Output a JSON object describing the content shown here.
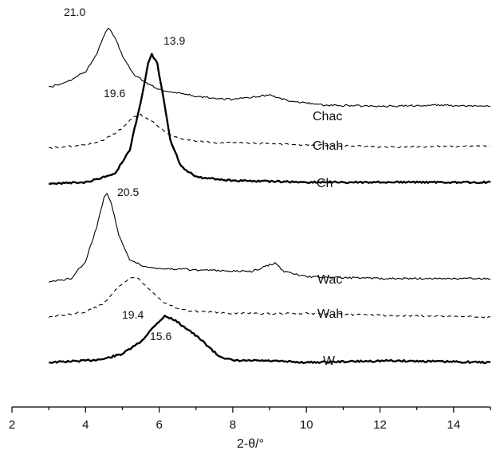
{
  "chart_data": {
    "type": "line",
    "xlabel": "2-θ/°",
    "xlim": [
      2,
      15
    ],
    "x_ticks": [
      2,
      4,
      6,
      8,
      10,
      12,
      14
    ],
    "y_axis_shown": false,
    "grid": false,
    "series": [
      {
        "name": "Chac",
        "style": "thin-solid",
        "points": [
          [
            3.0,
            1.3
          ],
          [
            3.5,
            1.55
          ],
          [
            4.0,
            2.0
          ],
          [
            4.3,
            2.8
          ],
          [
            4.5,
            3.6
          ],
          [
            4.62,
            3.95
          ],
          [
            4.8,
            3.55
          ],
          [
            5.0,
            2.7
          ],
          [
            5.3,
            1.9
          ],
          [
            5.7,
            1.45
          ],
          [
            6.0,
            1.2
          ],
          [
            7.0,
            0.9
          ],
          [
            8.0,
            0.75
          ],
          [
            9.0,
            0.95
          ],
          [
            9.5,
            0.7
          ],
          [
            10.5,
            0.5
          ],
          [
            12.0,
            0.45
          ],
          [
            13.5,
            0.5
          ],
          [
            15.0,
            0.45
          ]
        ]
      },
      {
        "name": "Chah",
        "style": "dashed",
        "points": [
          [
            3.0,
            0.0
          ],
          [
            4.0,
            0.15
          ],
          [
            4.5,
            0.35
          ],
          [
            5.0,
            0.9
          ],
          [
            5.3,
            1.4
          ],
          [
            5.5,
            1.5
          ],
          [
            5.8,
            1.2
          ],
          [
            6.2,
            0.7
          ],
          [
            6.6,
            0.4
          ],
          [
            7.5,
            0.25
          ],
          [
            9.0,
            0.2
          ],
          [
            10.0,
            0.15
          ],
          [
            12.0,
            0.05
          ],
          [
            15.0,
            0.1
          ]
        ]
      },
      {
        "name": "Ch",
        "style": "thick-solid",
        "points": [
          [
            3.0,
            0.0
          ],
          [
            4.0,
            0.05
          ],
          [
            4.8,
            0.3
          ],
          [
            5.2,
            1.0
          ],
          [
            5.5,
            2.4
          ],
          [
            5.7,
            3.5
          ],
          [
            5.8,
            3.8
          ],
          [
            5.95,
            3.5
          ],
          [
            6.1,
            2.6
          ],
          [
            6.3,
            1.3
          ],
          [
            6.6,
            0.5
          ],
          [
            7.0,
            0.2
          ],
          [
            8.0,
            0.1
          ],
          [
            10.0,
            0.05
          ],
          [
            12.0,
            0.05
          ],
          [
            15.0,
            0.05
          ]
        ]
      },
      {
        "name": "Wac",
        "style": "thin-solid",
        "points": [
          [
            3.0,
            0.0
          ],
          [
            3.6,
            0.1
          ],
          [
            4.0,
            0.6
          ],
          [
            4.3,
            1.6
          ],
          [
            4.5,
            2.45
          ],
          [
            4.58,
            2.6
          ],
          [
            4.7,
            2.3
          ],
          [
            4.9,
            1.4
          ],
          [
            5.2,
            0.65
          ],
          [
            5.6,
            0.45
          ],
          [
            6.0,
            0.4
          ],
          [
            7.0,
            0.35
          ],
          [
            8.5,
            0.3
          ],
          [
            9.0,
            0.5
          ],
          [
            9.15,
            0.55
          ],
          [
            9.4,
            0.3
          ],
          [
            10.0,
            0.15
          ],
          [
            12.0,
            0.1
          ],
          [
            15.0,
            0.1
          ]
        ]
      },
      {
        "name": "Wah",
        "style": "dashed",
        "points": [
          [
            3.0,
            0.0
          ],
          [
            4.0,
            0.15
          ],
          [
            4.5,
            0.4
          ],
          [
            4.9,
            0.9
          ],
          [
            5.2,
            1.15
          ],
          [
            5.4,
            1.15
          ],
          [
            5.7,
            0.85
          ],
          [
            6.1,
            0.45
          ],
          [
            6.6,
            0.2
          ],
          [
            8.0,
            0.1
          ],
          [
            10.0,
            0.1
          ],
          [
            12.0,
            0.05
          ],
          [
            15.0,
            0.0
          ]
        ]
      },
      {
        "name": "W",
        "style": "thick-solid",
        "points": [
          [
            3.0,
            0.0
          ],
          [
            4.0,
            0.05
          ],
          [
            4.5,
            0.1
          ],
          [
            5.0,
            0.25
          ],
          [
            5.5,
            0.6
          ],
          [
            5.9,
            1.1
          ],
          [
            6.15,
            1.35
          ],
          [
            6.4,
            1.25
          ],
          [
            6.8,
            0.95
          ],
          [
            7.2,
            0.6
          ],
          [
            7.6,
            0.2
          ],
          [
            8.0,
            0.05
          ],
          [
            8.8,
            0.05
          ],
          [
            10.0,
            0.0
          ],
          [
            12.3,
            0.05
          ],
          [
            15.0,
            0.0
          ]
        ]
      }
    ],
    "annotations": [
      {
        "text": "21.0",
        "x": 4.1,
        "y_ref": "Chac"
      },
      {
        "text": "13.9",
        "x": 6.2,
        "y_ref": "Ch"
      },
      {
        "text": "19.6",
        "x": 4.7,
        "y_ref": "Chah"
      },
      {
        "text": "20.5",
        "x": 5.0,
        "y_ref": "Wac"
      },
      {
        "text": "19.4",
        "x": 5.1,
        "y_ref": "Wah"
      },
      {
        "text": "15.6",
        "x": 5.0,
        "y_ref": "W"
      }
    ]
  }
}
